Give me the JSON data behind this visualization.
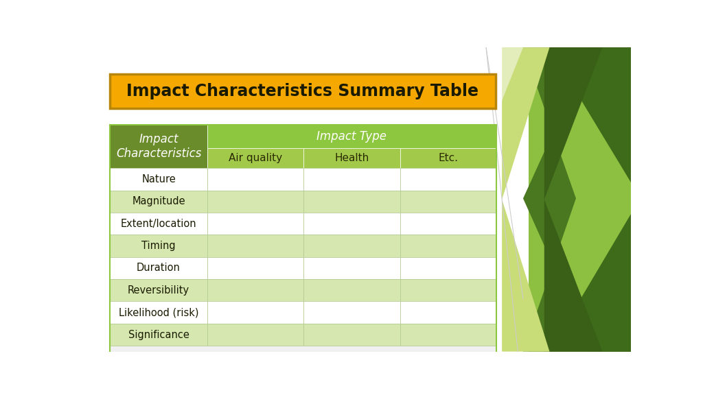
{
  "title": "Impact Characteristics Summary Table",
  "title_bg_color": "#F5A800",
  "title_border_color": "#B8860B",
  "title_text_color": "#1a1a00",
  "header1_text": "Impact\nCharacteristics",
  "header2_text": "Impact Type",
  "subheaders": [
    "Air quality",
    "Health",
    "Etc."
  ],
  "rows": [
    "Nature",
    "Magnitude",
    "Extent/location",
    "Timing",
    "Duration",
    "Reversibility",
    "Likelihood (risk)",
    "Significance"
  ],
  "col1_header_bg": "#6B8C2A",
  "col1_header_text_color": "#ffffff",
  "col2_header_bg": "#8DC63F",
  "col2_header_text_color": "#ffffff",
  "subheader_bg": "#A3C94A",
  "subheader_text_color": "#2a2a00",
  "row_white_bg": "#ffffff",
  "row_green_bg": "#D6E8B0",
  "row_text_color": "#1a1a00",
  "border_color": "#8DC63F",
  "bg_color": "#ffffff",
  "decor_dark_green": "#3D6B1A",
  "decor_med_green": "#5A8A28",
  "decor_light_green": "#C8DC78",
  "decor_bright_green": "#8DC63F",
  "decor_lime": "#A8C840",
  "fig_width": 10.24,
  "fig_height": 5.76
}
